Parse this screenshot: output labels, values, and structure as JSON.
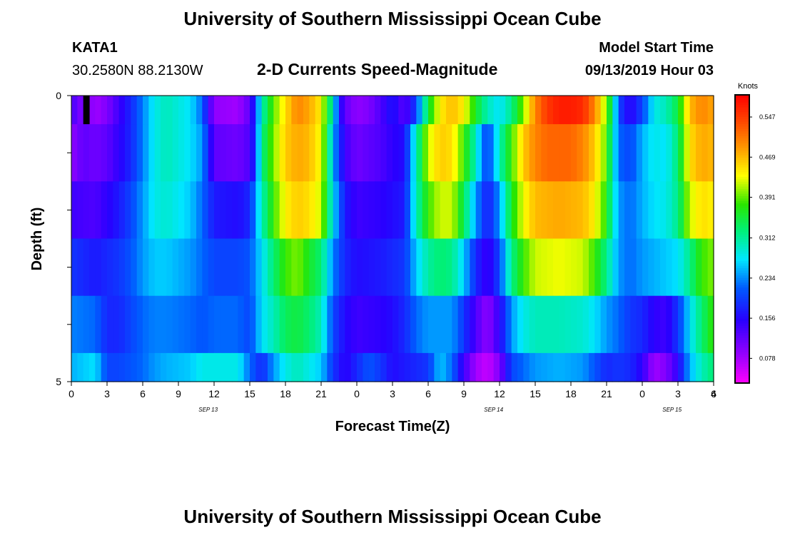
{
  "header": {
    "title": "University of Southern Mississippi Ocean Cube",
    "station_id": "KATA1",
    "coordinates": "30.2580N 88.2130W",
    "plot_title": "2-D Currents Speed-Magnitude",
    "model_label": "Model Start Time",
    "model_time": "09/13/2019 Hour 03"
  },
  "footer": {
    "title": "University of Southern Mississippi Ocean Cube"
  },
  "chart_data": {
    "type": "heatmap",
    "xlabel": "Forecast Time(Z)",
    "ylabel": "Depth (ft)",
    "x_tick_labels": [
      "0",
      "3",
      "6",
      "9",
      "12",
      "15",
      "18",
      "21",
      "0",
      "3",
      "6",
      "9",
      "12",
      "15",
      "18",
      "21",
      "0",
      "3",
      "4",
      "6"
    ],
    "date_labels": [
      {
        "label": "SEP 13",
        "x": 11.5
      },
      {
        "label": "SEP 14",
        "x": 35.5
      },
      {
        "label": "SEP 15",
        "x": 50.5
      }
    ],
    "y_tick_labels": [
      "0",
      "5"
    ],
    "ylim": [
      0,
      5
    ],
    "colorbar": {
      "unit": "Knots",
      "ticks": [
        "0.547",
        "0.469",
        "0.391",
        "0.312",
        "0.234",
        "0.156",
        "0.078"
      ],
      "range": [
        0.03,
        0.59
      ]
    },
    "layer_depths_ft": [
      0.25,
      1.0,
      2.0,
      3.0,
      4.0,
      4.75
    ],
    "layer_bounds_ft": [
      0,
      0.5,
      1.5,
      2.5,
      3.5,
      4.5,
      5
    ],
    "hours_per_step": 0.5,
    "speed_profiles": [
      [
        [
          0,
          0.16
        ],
        [
          0.5,
          0.09
        ],
        [
          1,
          0.12
        ],
        [
          2,
          0.08
        ],
        [
          3,
          0.1
        ],
        [
          4,
          0.14
        ],
        [
          5,
          0.18
        ],
        [
          6,
          0.23
        ],
        [
          7,
          0.28
        ],
        [
          8,
          0.3
        ],
        [
          10,
          0.27
        ],
        [
          11,
          0.22
        ],
        [
          11.5,
          0.15
        ],
        [
          12,
          0.09
        ],
        [
          14,
          0.08
        ],
        [
          15,
          0.12
        ],
        [
          15.5,
          0.2
        ],
        [
          16,
          0.3
        ],
        [
          17,
          0.39
        ],
        [
          18,
          0.45
        ],
        [
          19,
          0.5
        ],
        [
          20,
          0.48
        ],
        [
          21,
          0.44
        ],
        [
          21.5,
          0.36
        ],
        [
          22,
          0.3
        ],
        [
          22.5,
          0.17
        ],
        [
          23,
          0.12
        ],
        [
          24,
          0.09
        ],
        [
          25,
          0.1
        ],
        [
          26,
          0.13
        ],
        [
          27,
          0.17
        ],
        [
          28,
          0.12
        ],
        [
          29,
          0.2
        ],
        [
          30,
          0.35
        ],
        [
          31,
          0.44
        ],
        [
          32,
          0.47
        ],
        [
          33,
          0.44
        ],
        [
          34,
          0.36
        ],
        [
          35,
          0.3
        ],
        [
          36,
          0.27
        ],
        [
          37,
          0.32
        ],
        [
          38,
          0.4
        ],
        [
          39,
          0.5
        ],
        [
          40,
          0.55
        ],
        [
          41,
          0.57
        ],
        [
          42,
          0.57
        ],
        [
          43,
          0.56
        ],
        [
          44,
          0.5
        ],
        [
          45,
          0.4
        ],
        [
          45.5,
          0.32
        ],
        [
          46,
          0.2
        ],
        [
          47,
          0.15
        ],
        [
          48,
          0.2
        ],
        [
          49,
          0.28
        ],
        [
          50,
          0.3
        ],
        [
          51,
          0.35
        ],
        [
          52,
          0.47
        ],
        [
          53,
          0.5
        ],
        [
          54,
          0.48
        ]
      ],
      [
        [
          0,
          0.09
        ],
        [
          1,
          0.12
        ],
        [
          2,
          0.11
        ],
        [
          3,
          0.12
        ],
        [
          4,
          0.15
        ],
        [
          5,
          0.18
        ],
        [
          6,
          0.23
        ],
        [
          7,
          0.28
        ],
        [
          8,
          0.3
        ],
        [
          10,
          0.27
        ],
        [
          11,
          0.24
        ],
        [
          11.5,
          0.18
        ],
        [
          12,
          0.12
        ],
        [
          14,
          0.11
        ],
        [
          15,
          0.13
        ],
        [
          15.5,
          0.2
        ],
        [
          16,
          0.32
        ],
        [
          17,
          0.4
        ],
        [
          18,
          0.46
        ],
        [
          19,
          0.48
        ],
        [
          20,
          0.47
        ],
        [
          21,
          0.43
        ],
        [
          21.5,
          0.35
        ],
        [
          22,
          0.25
        ],
        [
          23,
          0.14
        ],
        [
          24,
          0.11
        ],
        [
          26,
          0.13
        ],
        [
          27,
          0.15
        ],
        [
          28,
          0.16
        ],
        [
          29,
          0.3
        ],
        [
          30,
          0.42
        ],
        [
          31,
          0.46
        ],
        [
          32,
          0.45
        ],
        [
          33,
          0.38
        ],
        [
          34,
          0.3
        ],
        [
          34.5,
          0.23
        ],
        [
          35,
          0.2
        ],
        [
          35.5,
          0.24
        ],
        [
          36,
          0.3
        ],
        [
          37,
          0.38
        ],
        [
          38,
          0.46
        ],
        [
          39,
          0.5
        ],
        [
          40,
          0.52
        ],
        [
          42,
          0.52
        ],
        [
          43,
          0.5
        ],
        [
          44,
          0.46
        ],
        [
          45,
          0.39
        ],
        [
          45.5,
          0.3
        ],
        [
          46,
          0.22
        ],
        [
          47,
          0.2
        ],
        [
          48,
          0.25
        ],
        [
          49,
          0.28
        ],
        [
          50,
          0.27
        ],
        [
          51,
          0.33
        ],
        [
          52,
          0.45
        ],
        [
          53,
          0.48
        ],
        [
          54,
          0.47
        ]
      ],
      [
        [
          0,
          0.14
        ],
        [
          2,
          0.13
        ],
        [
          3,
          0.15
        ],
        [
          4,
          0.17
        ],
        [
          5,
          0.2
        ],
        [
          6,
          0.24
        ],
        [
          7,
          0.28
        ],
        [
          8,
          0.29
        ],
        [
          10,
          0.26
        ],
        [
          11,
          0.22
        ],
        [
          12,
          0.17
        ],
        [
          14,
          0.16
        ],
        [
          15,
          0.18
        ],
        [
          16,
          0.3
        ],
        [
          17,
          0.38
        ],
        [
          18,
          0.44
        ],
        [
          19,
          0.46
        ],
        [
          20,
          0.45
        ],
        [
          21,
          0.42
        ],
        [
          22,
          0.27
        ],
        [
          23,
          0.17
        ],
        [
          24,
          0.14
        ],
        [
          26,
          0.15
        ],
        [
          27,
          0.16
        ],
        [
          28,
          0.17
        ],
        [
          29,
          0.3
        ],
        [
          30,
          0.38
        ],
        [
          31,
          0.42
        ],
        [
          32,
          0.42
        ],
        [
          33,
          0.34
        ],
        [
          34,
          0.24
        ],
        [
          35,
          0.17
        ],
        [
          36,
          0.24
        ],
        [
          37,
          0.36
        ],
        [
          38,
          0.43
        ],
        [
          39,
          0.47
        ],
        [
          41,
          0.48
        ],
        [
          43,
          0.47
        ],
        [
          44,
          0.44
        ],
        [
          45,
          0.37
        ],
        [
          45.5,
          0.3
        ],
        [
          46,
          0.24
        ],
        [
          47,
          0.22
        ],
        [
          48,
          0.25
        ],
        [
          49,
          0.27
        ],
        [
          50,
          0.28
        ],
        [
          51,
          0.32
        ],
        [
          52,
          0.42
        ],
        [
          53,
          0.45
        ],
        [
          54,
          0.44
        ]
      ],
      [
        [
          0,
          0.19
        ],
        [
          2,
          0.17
        ],
        [
          3,
          0.18
        ],
        [
          4,
          0.19
        ],
        [
          5,
          0.21
        ],
        [
          6,
          0.24
        ],
        [
          7,
          0.26
        ],
        [
          8,
          0.26
        ],
        [
          10,
          0.24
        ],
        [
          11,
          0.22
        ],
        [
          12,
          0.2
        ],
        [
          14,
          0.2
        ],
        [
          15,
          0.21
        ],
        [
          16,
          0.27
        ],
        [
          17,
          0.33
        ],
        [
          18,
          0.38
        ],
        [
          19,
          0.4
        ],
        [
          20,
          0.36
        ],
        [
          21,
          0.33
        ],
        [
          22,
          0.23
        ],
        [
          23,
          0.18
        ],
        [
          24,
          0.16
        ],
        [
          26,
          0.17
        ],
        [
          27,
          0.18
        ],
        [
          28,
          0.19
        ],
        [
          29,
          0.26
        ],
        [
          30,
          0.31
        ],
        [
          31,
          0.33
        ],
        [
          32,
          0.32
        ],
        [
          33,
          0.26
        ],
        [
          34,
          0.18
        ],
        [
          35,
          0.14
        ],
        [
          36,
          0.2
        ],
        [
          37,
          0.32
        ],
        [
          38,
          0.38
        ],
        [
          39,
          0.42
        ],
        [
          41,
          0.43
        ],
        [
          43,
          0.42
        ],
        [
          44,
          0.38
        ],
        [
          45,
          0.32
        ],
        [
          45.5,
          0.28
        ],
        [
          46,
          0.24
        ],
        [
          47,
          0.22
        ],
        [
          48,
          0.24
        ],
        [
          49,
          0.25
        ],
        [
          50,
          0.26
        ],
        [
          51,
          0.27
        ],
        [
          52,
          0.32
        ],
        [
          53,
          0.38
        ],
        [
          54,
          0.4
        ]
      ],
      [
        [
          0,
          0.23
        ],
        [
          2,
          0.22
        ],
        [
          3,
          0.18
        ],
        [
          4,
          0.18
        ],
        [
          5,
          0.2
        ],
        [
          6,
          0.22
        ],
        [
          7,
          0.23
        ],
        [
          8,
          0.23
        ],
        [
          10,
          0.22
        ],
        [
          11,
          0.21
        ],
        [
          12,
          0.22
        ],
        [
          14,
          0.22
        ],
        [
          15,
          0.2
        ],
        [
          16,
          0.27
        ],
        [
          17,
          0.3
        ],
        [
          18,
          0.34
        ],
        [
          19,
          0.35
        ],
        [
          20,
          0.33
        ],
        [
          21,
          0.3
        ],
        [
          22,
          0.2
        ],
        [
          23,
          0.16
        ],
        [
          24,
          0.14
        ],
        [
          26,
          0.15
        ],
        [
          27,
          0.16
        ],
        [
          28,
          0.18
        ],
        [
          29,
          0.22
        ],
        [
          30,
          0.24
        ],
        [
          31,
          0.24
        ],
        [
          32,
          0.24
        ],
        [
          33,
          0.19
        ],
        [
          34,
          0.13
        ],
        [
          35,
          0.09
        ],
        [
          36,
          0.15
        ],
        [
          37,
          0.24
        ],
        [
          38,
          0.28
        ],
        [
          39,
          0.3
        ],
        [
          41,
          0.3
        ],
        [
          43,
          0.29
        ],
        [
          44,
          0.27
        ],
        [
          45,
          0.24
        ],
        [
          46,
          0.22
        ],
        [
          47,
          0.19
        ],
        [
          48,
          0.18
        ],
        [
          49,
          0.15
        ],
        [
          50,
          0.14
        ],
        [
          51,
          0.19
        ],
        [
          52,
          0.27
        ],
        [
          53,
          0.33
        ],
        [
          54,
          0.38
        ]
      ],
      [
        [
          0,
          0.25
        ],
        [
          2,
          0.27
        ],
        [
          3,
          0.2
        ],
        [
          4,
          0.2
        ],
        [
          5,
          0.21
        ],
        [
          6,
          0.22
        ],
        [
          7,
          0.24
        ],
        [
          8,
          0.25
        ],
        [
          10,
          0.26
        ],
        [
          11,
          0.28
        ],
        [
          12,
          0.28
        ],
        [
          14,
          0.28
        ],
        [
          15,
          0.22
        ],
        [
          16,
          0.18
        ],
        [
          17,
          0.24
        ],
        [
          18,
          0.28
        ],
        [
          19,
          0.3
        ],
        [
          20,
          0.28
        ],
        [
          21,
          0.26
        ],
        [
          22,
          0.19
        ],
        [
          23,
          0.15
        ],
        [
          24,
          0.18
        ],
        [
          25,
          0.21
        ],
        [
          26,
          0.19
        ],
        [
          27,
          0.16
        ],
        [
          28,
          0.17
        ],
        [
          29,
          0.18
        ],
        [
          30,
          0.19
        ],
        [
          31,
          0.26
        ],
        [
          32,
          0.22
        ],
        [
          33,
          0.14
        ],
        [
          34,
          0.08
        ],
        [
          35,
          0.06
        ],
        [
          36,
          0.1
        ],
        [
          37,
          0.2
        ],
        [
          38,
          0.22
        ],
        [
          39,
          0.24
        ],
        [
          41,
          0.25
        ],
        [
          43,
          0.24
        ],
        [
          44,
          0.21
        ],
        [
          45,
          0.18
        ],
        [
          46,
          0.19
        ],
        [
          47,
          0.18
        ],
        [
          48,
          0.15
        ],
        [
          49,
          0.08
        ],
        [
          50,
          0.1
        ],
        [
          51,
          0.15
        ],
        [
          52,
          0.25
        ],
        [
          53,
          0.3
        ],
        [
          54,
          0.33
        ]
      ]
    ],
    "missing_cells": [
      {
        "layer": 0,
        "x": 1.0
      }
    ]
  }
}
